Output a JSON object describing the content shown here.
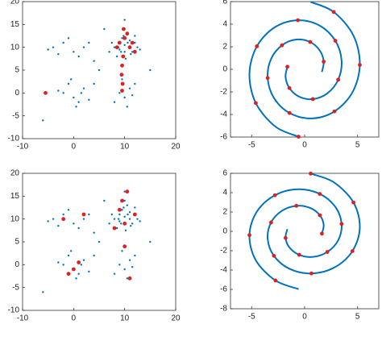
{
  "chart_data": [
    {
      "type": "scatter",
      "xlim": [
        -10,
        20
      ],
      "ylim": [
        -10,
        20
      ],
      "xticks": [
        -10,
        0,
        10,
        20
      ],
      "yticks": [
        -10,
        -5,
        0,
        5,
        10,
        15,
        20
      ],
      "series": [
        {
          "color": "#0072bd",
          "marker": "dot",
          "x": [
            8,
            9,
            10,
            11,
            12,
            9.5,
            10.5,
            8.5,
            11.5,
            10,
            9,
            11,
            10,
            12.5,
            7.5,
            10.2,
            9.8,
            11.2,
            8.8,
            10.6,
            9.3,
            12,
            7,
            13,
            10,
            -4,
            -2,
            0,
            2,
            -1,
            1,
            -3,
            3,
            -5,
            4,
            -2,
            0,
            2,
            -1,
            1,
            -3,
            3,
            0.5,
            -0.5,
            1.5,
            9,
            10,
            11,
            12,
            8,
            10.5,
            9.5,
            11.5,
            5,
            6,
            15,
            -6,
            4
          ],
          "y": [
            10,
            11,
            9,
            10,
            11,
            12,
            13,
            8,
            9,
            10.5,
            9.5,
            11.5,
            14,
            10,
            11,
            7.5,
            12.5,
            8.5,
            10,
            11,
            9,
            12.5,
            9,
            9.5,
            16,
            10,
            11,
            9,
            10,
            12,
            8,
            8.5,
            11,
            9.5,
            7,
            0,
            -1,
            1,
            2,
            -2,
            0.5,
            -1.5,
            -3,
            3,
            0,
            0,
            -1,
            1,
            2,
            -2,
            -3,
            3,
            -0.5,
            5,
            14,
            5,
            -6,
            2
          ]
        },
        {
          "color": "#e02020",
          "marker": "big",
          "x": [
            -5.5,
            9.5,
            9.6,
            9.4,
            9.5,
            9.7,
            10,
            11,
            12,
            9,
            10.5,
            11.5,
            8.5,
            9.8
          ],
          "y": [
            0,
            0.5,
            2,
            4,
            6,
            8,
            12,
            10,
            9,
            11,
            13,
            11,
            10,
            14
          ]
        }
      ]
    },
    {
      "type": "scatter",
      "xlim": [
        -7,
        7
      ],
      "ylim": [
        -6,
        6
      ],
      "xticks": [
        -5,
        0,
        5
      ],
      "yticks": [
        -6,
        -4,
        -2,
        0,
        2,
        4,
        6
      ],
      "series": [
        {
          "color": "#0072bd",
          "marker": "line",
          "x": [
            -1.63,
            -1.8,
            -1.44,
            -0.52,
            0.78,
            2.14,
            3.17,
            3.49,
            2.9,
            1.43,
            -0.64,
            -2.81,
            -4.51,
            -5.21,
            -4.61,
            -2.75,
            -0.57
          ],
          "y": [
            0.23,
            -0.68,
            -1.66,
            -2.42,
            -2.64,
            -2.13,
            -0.92,
            0.77,
            2.53,
            3.87,
            4.35,
            3.73,
            2.04,
            -0.39,
            -2.99,
            -5.08,
            -5.97
          ]
        },
        {
          "color": "#0072bd",
          "marker": "line",
          "x": [
            1.63,
            1.8,
            1.44,
            0.52,
            -0.78,
            -2.14,
            -3.17,
            -3.49,
            -2.9,
            -1.43,
            0.64,
            2.81,
            4.51,
            5.21,
            4.61,
            2.75,
            0.57
          ],
          "y": [
            -0.23,
            0.68,
            1.66,
            2.42,
            2.64,
            2.13,
            0.92,
            -0.77,
            -2.53,
            -3.87,
            -4.35,
            -3.73,
            -2.04,
            0.39,
            2.99,
            5.08,
            5.97
          ]
        },
        {
          "color": "#e02020",
          "marker": "big",
          "x": [
            -1.63,
            -1.44,
            0.78,
            3.17,
            2.9,
            -0.64,
            -4.51,
            -4.61,
            -0.57,
            1.8,
            0.52,
            -2.14,
            -3.49,
            -1.43,
            2.81,
            5.21,
            2.75
          ],
          "y": [
            0.23,
            -1.66,
            -2.64,
            -0.92,
            2.53,
            4.35,
            2.04,
            -2.99,
            -5.97,
            0.68,
            2.42,
            2.13,
            -0.77,
            -3.87,
            -3.73,
            0.39,
            5.08
          ]
        }
      ]
    },
    {
      "type": "scatter",
      "xlim": [
        -10,
        20
      ],
      "ylim": [
        -10,
        20
      ],
      "xticks": [
        -10,
        0,
        10,
        20
      ],
      "yticks": [
        -10,
        -5,
        0,
        5,
        10,
        15,
        20
      ],
      "series": [
        {
          "color": "#0072bd",
          "marker": "dot",
          "x": [
            8,
            9,
            10,
            11,
            12,
            9.5,
            10.5,
            8.5,
            11.5,
            10,
            9,
            11,
            10,
            12.5,
            7.5,
            10.2,
            9.8,
            11.2,
            8.8,
            10.6,
            9.3,
            12,
            7,
            13,
            10,
            -4,
            -2,
            0,
            2,
            -1,
            1,
            -3,
            3,
            -5,
            4,
            -2,
            0,
            2,
            -1,
            1,
            -3,
            3,
            0.5,
            -0.5,
            1.5,
            9,
            10,
            11,
            12,
            8,
            10.5,
            9.5,
            11.5,
            5,
            6,
            15,
            -6,
            4
          ],
          "y": [
            10,
            11,
            9,
            10,
            11,
            12,
            13,
            8,
            9,
            10.5,
            9.5,
            11.5,
            14,
            10,
            11,
            7.5,
            12.5,
            8.5,
            10,
            11,
            9,
            12.5,
            9,
            9.5,
            16,
            10,
            11,
            9,
            10,
            12,
            8,
            8.5,
            11,
            9.5,
            7,
            0,
            -1,
            1,
            2,
            -2,
            0.5,
            -1.5,
            -3,
            3,
            0,
            0,
            -1,
            1,
            2,
            -2,
            -3,
            3,
            -0.5,
            5,
            14,
            5,
            -6,
            2
          ]
        },
        {
          "color": "#e02020",
          "marker": "big",
          "x": [
            10.5,
            -2,
            2,
            9,
            8,
            -1,
            1,
            11,
            10,
            12,
            0,
            9.5,
            10
          ],
          "y": [
            16,
            10,
            11,
            12,
            8,
            -2,
            0.5,
            -3,
            4,
            11,
            -1,
            14,
            9
          ]
        }
      ]
    },
    {
      "type": "scatter",
      "xlim": [
        -7,
        7
      ],
      "ylim": [
        -8,
        6
      ],
      "xticks": [
        -5,
        0,
        5
      ],
      "yticks": [
        -8,
        -6,
        -4,
        -2,
        0,
        2,
        4,
        6
      ],
      "series": [
        {
          "color": "#0072bd",
          "marker": "line",
          "x": [
            -1.63,
            -1.8,
            -1.44,
            -0.52,
            0.78,
            2.14,
            3.17,
            3.49,
            2.9,
            1.43,
            -0.64,
            -2.81,
            -4.51,
            -5.21,
            -4.61,
            -2.75,
            -0.57
          ],
          "y": [
            0.23,
            -0.68,
            -1.66,
            -2.42,
            -2.64,
            -2.13,
            -0.92,
            0.77,
            2.53,
            3.87,
            4.35,
            3.73,
            2.04,
            -0.39,
            -2.99,
            -5.08,
            -5.97
          ]
        },
        {
          "color": "#0072bd",
          "marker": "line",
          "x": [
            1.63,
            1.8,
            1.44,
            0.52,
            -0.78,
            -2.14,
            -3.17,
            -3.49,
            -2.9,
            -1.43,
            0.64,
            2.81,
            4.51,
            5.21,
            4.61,
            2.75,
            0.57
          ],
          "y": [
            -0.23,
            0.68,
            1.66,
            2.42,
            2.64,
            2.13,
            0.92,
            -0.77,
            -2.53,
            -3.87,
            -4.35,
            -3.73,
            -2.04,
            0.39,
            2.99,
            5.08,
            5.97
          ]
        },
        {
          "color": "#e02020",
          "marker": "big",
          "x": [
            -1.8,
            -0.52,
            2.14,
            3.49,
            1.43,
            -2.81,
            -5.21,
            -2.75,
            1.63,
            1.44,
            -0.78,
            -3.17,
            -2.9,
            0.64,
            4.51,
            4.61,
            0.57
          ],
          "y": [
            -0.68,
            -2.42,
            -2.13,
            0.77,
            3.87,
            3.73,
            -0.39,
            -5.08,
            -0.23,
            1.66,
            2.64,
            0.92,
            -2.53,
            -4.35,
            -2.04,
            2.99,
            5.97
          ]
        }
      ]
    }
  ]
}
